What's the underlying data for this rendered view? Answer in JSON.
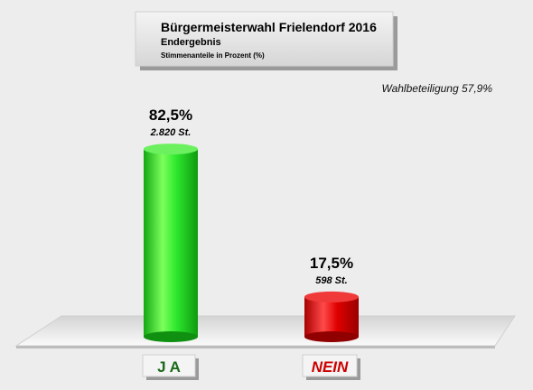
{
  "chart_data": {
    "type": "bar",
    "title": "Bürgermeisterwahl Frielendorf 2016",
    "subtitle": "Endergebnis",
    "note": "Stimmenanteile in Prozent (%)",
    "turnout_label": "Wahlbeteiligung 57,9%",
    "categories": [
      "J A",
      "NEIN"
    ],
    "values": [
      82.5,
      17.5
    ],
    "value_labels": [
      "82,5%",
      "17,5%"
    ],
    "vote_labels": [
      "2.820 St.",
      "598 St."
    ],
    "ylim": [
      0,
      100
    ],
    "colors": {
      "ja": "#22dd22",
      "ja_label": "#1a6a1a",
      "nein": "#dd0000",
      "nein_label": "#cc0000"
    }
  }
}
